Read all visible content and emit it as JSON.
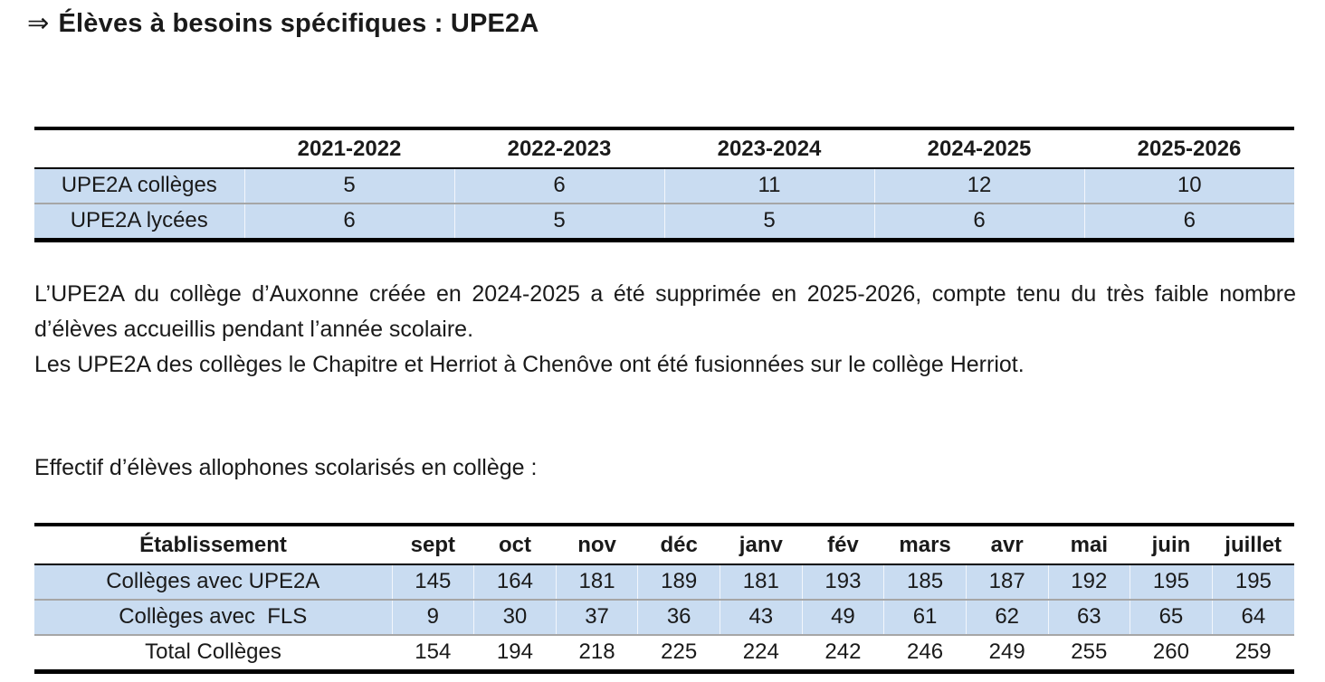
{
  "title": {
    "arrow": "⇒",
    "text": "Élèves à besoins spécifiques : UPE2A"
  },
  "paragraphs": {
    "p1": "L’UPE2A du collège d’Auxonne créée en 2024-2025 a été supprimée en 2025-2026, compte tenu du très faible nombre d’élèves accueillis pendant l’année scolaire.",
    "p2": "Les UPE2A des collèges le Chapitre et Herriot à Chenôve ont été fusionnées sur le collège Herriot.",
    "effectif_label": "Effectif d’élèves allophones scolarisés en collège :"
  },
  "table_upe2a": {
    "columns": [
      "",
      "2021-2022",
      "2022-2023",
      "2023-2024",
      "2024-2025",
      "2025-2026"
    ],
    "rows": [
      {
        "label": "UPE2A collèges",
        "values": [
          "5",
          "6",
          "11",
          "12",
          "10"
        ],
        "highlight": true
      },
      {
        "label": "UPE2A lycées",
        "values": [
          "6",
          "5",
          "5",
          "6",
          "6"
        ],
        "highlight": true
      }
    ]
  },
  "table_allophones": {
    "columns": [
      "Établissement",
      "sept",
      "oct",
      "nov",
      "déc",
      "janv",
      "fév",
      "mars",
      "avr",
      "mai",
      "juin",
      "juillet"
    ],
    "rows": [
      {
        "label": "Collèges avec UPE2A",
        "values": [
          "145",
          "164",
          "181",
          "189",
          "181",
          "193",
          "185",
          "187",
          "192",
          "195",
          "195"
        ],
        "highlight": true
      },
      {
        "label": "Collèges avec  FLS",
        "values": [
          "9",
          "30",
          "37",
          "36",
          "43",
          "49",
          "61",
          "62",
          "63",
          "65",
          "64"
        ],
        "highlight": true
      },
      {
        "label": "Total Collèges",
        "values": [
          "154",
          "194",
          "218",
          "225",
          "224",
          "242",
          "246",
          "249",
          "255",
          "260",
          "259"
        ],
        "highlight": false
      }
    ]
  },
  "chart_data": [
    {
      "type": "table",
      "title": "UPE2A par année scolaire",
      "categories": [
        "2021-2022",
        "2022-2023",
        "2023-2024",
        "2024-2025",
        "2025-2026"
      ],
      "series": [
        {
          "name": "UPE2A collèges",
          "values": [
            5,
            6,
            11,
            12,
            10
          ]
        },
        {
          "name": "UPE2A lycées",
          "values": [
            6,
            5,
            5,
            6,
            6
          ]
        }
      ]
    },
    {
      "type": "table",
      "title": "Effectif d’élèves allophones scolarisés en collège",
      "categories": [
        "sept",
        "oct",
        "nov",
        "déc",
        "janv",
        "fév",
        "mars",
        "avr",
        "mai",
        "juin",
        "juillet"
      ],
      "series": [
        {
          "name": "Collèges avec UPE2A",
          "values": [
            145,
            164,
            181,
            189,
            181,
            193,
            185,
            187,
            192,
            195,
            195
          ]
        },
        {
          "name": "Collèges avec FLS",
          "values": [
            9,
            30,
            37,
            36,
            43,
            49,
            61,
            62,
            63,
            65,
            64
          ]
        },
        {
          "name": "Total Collèges",
          "values": [
            154,
            194,
            218,
            225,
            224,
            242,
            246,
            249,
            255,
            260,
            259
          ]
        }
      ]
    }
  ],
  "colors": {
    "row_highlight": "#c9dcf1",
    "border_strong": "#000000",
    "row_separator": "#a6a6a6",
    "text": "#1a1a1a"
  }
}
